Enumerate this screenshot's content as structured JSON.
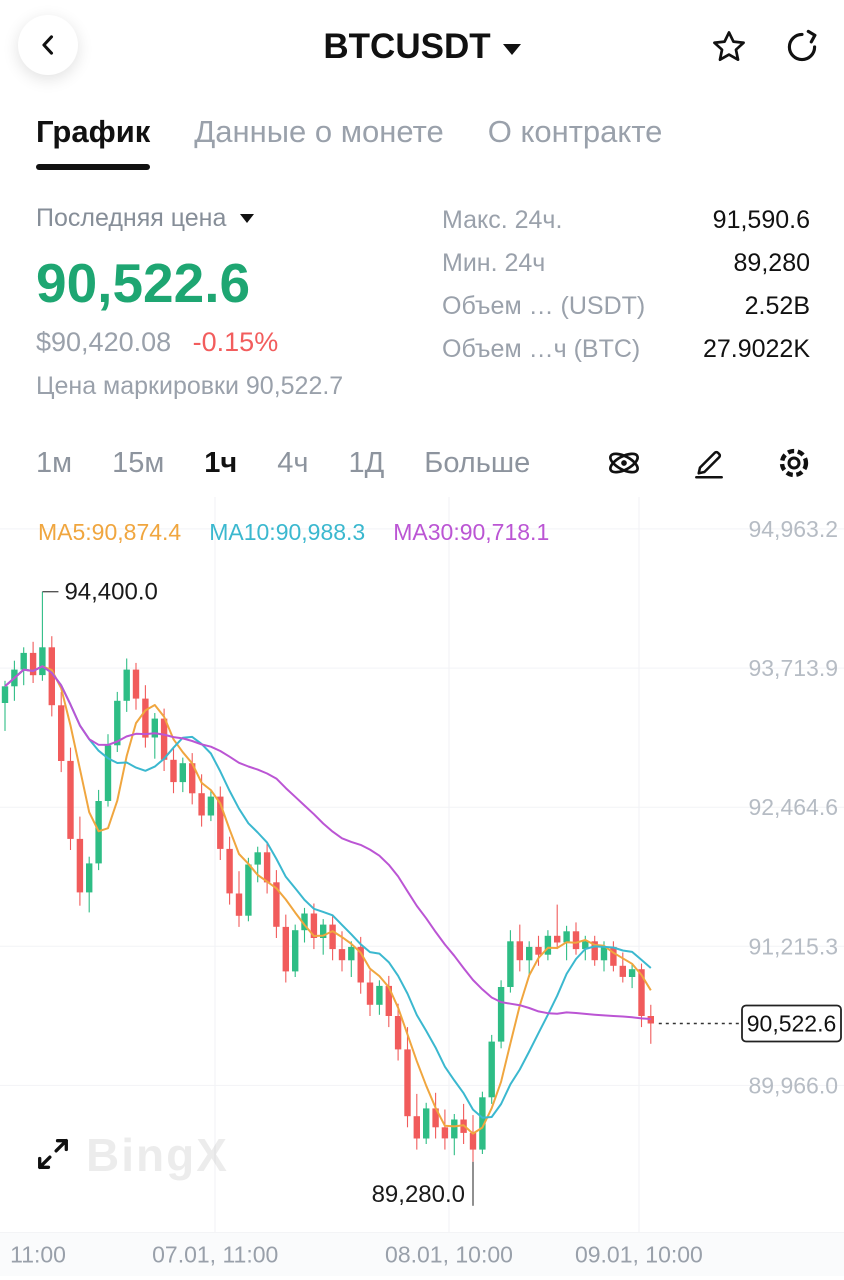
{
  "header": {
    "title": "BTCUSDT"
  },
  "tabs": [
    {
      "label": "График",
      "active": true
    },
    {
      "label": "Данные о монете",
      "active": false
    },
    {
      "label": "О контракте",
      "active": false
    }
  ],
  "price_panel": {
    "label": "Последняя цена",
    "last_price": "90,522.6",
    "fiat_price": "$90,420.08",
    "change_pct": "-0.15%",
    "mark_price": "Цена маркировки 90,522.7",
    "stats": [
      {
        "label": "Макс. 24ч.",
        "value": "91,590.6"
      },
      {
        "label": "Мин. 24ч",
        "value": "89,280"
      },
      {
        "label": "Объем … (USDT)",
        "value": "2.52B"
      },
      {
        "label": "Объем …ч (BTC)",
        "value": "27.9022K"
      }
    ]
  },
  "timeframes": [
    {
      "label": "1м",
      "active": false
    },
    {
      "label": "15м",
      "active": false
    },
    {
      "label": "1ч",
      "active": true
    },
    {
      "label": "4ч",
      "active": false
    },
    {
      "label": "1Д",
      "active": false
    },
    {
      "label": "Больше",
      "active": false
    }
  ],
  "chart": {
    "ma_labels": [
      {
        "text": "MA5:90,874.4"
      },
      {
        "text": "MA10:90,988.3"
      },
      {
        "text": "MA30:90,718.1"
      }
    ],
    "watermark": "BingX"
  },
  "chart_data": {
    "type": "candlestick",
    "symbol": "BTCUSDT",
    "interval": "1h",
    "ylim": [
      88650,
      95250
    ],
    "y_gridlines": [
      {
        "price": 94963.2,
        "label": "94,963.2"
      },
      {
        "price": 93713.9,
        "label": "93,713.9"
      },
      {
        "price": 92464.6,
        "label": "92,464.6"
      },
      {
        "price": 91215.3,
        "label": "91,215.3"
      },
      {
        "price": 89966.0,
        "label": "89,966.0"
      }
    ],
    "x_labels": [
      {
        "label": "11:00",
        "pos": 0.012
      },
      {
        "label": "07.01, 11:00",
        "pos": 0.255
      },
      {
        "label": "08.01, 10:00",
        "pos": 0.532
      },
      {
        "label": "09.01, 10:00",
        "pos": 0.757
      }
    ],
    "annotations": {
      "high": {
        "price": 94400.0,
        "label": "94,400.0",
        "candle_index": 4
      },
      "low": {
        "price": 89280.0,
        "label": "89,280.0",
        "candle_index": 50
      },
      "last": {
        "price": 90522.6,
        "label": "90,522.6"
      }
    },
    "ma": {
      "periods": [
        5,
        10,
        30
      ],
      "colors": [
        "#f0a63f",
        "#3bb8cf",
        "#bb55d4"
      ]
    },
    "colors": {
      "up": "#2ebd85",
      "down": "#f15b5b"
    },
    "candles": [
      [
        93400,
        93600,
        93150,
        93550
      ],
      [
        93550,
        93780,
        93420,
        93700
      ],
      [
        93700,
        93900,
        93560,
        93850
      ],
      [
        93850,
        93950,
        93580,
        93650
      ],
      [
        93650,
        94400,
        93600,
        93900
      ],
      [
        93900,
        94000,
        93280,
        93380
      ],
      [
        93380,
        93500,
        92780,
        92880
      ],
      [
        92880,
        93000,
        92080,
        92180
      ],
      [
        92180,
        92380,
        91580,
        91700
      ],
      [
        91700,
        92020,
        91520,
        91960
      ],
      [
        91960,
        92620,
        91900,
        92520
      ],
      [
        92520,
        93120,
        92470,
        93020
      ],
      [
        93020,
        93500,
        92960,
        93420
      ],
      [
        93420,
        93800,
        93320,
        93700
      ],
      [
        93700,
        93760,
        93340,
        93440
      ],
      [
        93440,
        93560,
        93000,
        93090
      ],
      [
        93090,
        93310,
        92900,
        93260
      ],
      [
        93260,
        93350,
        92790,
        92890
      ],
      [
        92890,
        93010,
        92590,
        92690
      ],
      [
        92690,
        92910,
        92600,
        92860
      ],
      [
        92860,
        92950,
        92490,
        92590
      ],
      [
        92590,
        92760,
        92290,
        92390
      ],
      [
        92390,
        92610,
        92340,
        92560
      ],
      [
        92560,
        92650,
        91990,
        92090
      ],
      [
        92090,
        92200,
        91590,
        91690
      ],
      [
        91690,
        91890,
        91390,
        91490
      ],
      [
        91490,
        92010,
        91440,
        91950
      ],
      [
        91950,
        92110,
        91790,
        92060
      ],
      [
        92060,
        92150,
        91690,
        91790
      ],
      [
        91790,
        91900,
        91290,
        91390
      ],
      [
        91390,
        91500,
        90890,
        90990
      ],
      [
        90990,
        91410,
        90940,
        91360
      ],
      [
        91360,
        91560,
        91250,
        91510
      ],
      [
        91510,
        91600,
        91190,
        91290
      ],
      [
        91290,
        91460,
        91140,
        91410
      ],
      [
        91410,
        91500,
        91090,
        91190
      ],
      [
        91190,
        91350,
        90990,
        91090
      ],
      [
        91090,
        91260,
        90940,
        91210
      ],
      [
        91210,
        91300,
        90790,
        90890
      ],
      [
        90890,
        91000,
        90590,
        90690
      ],
      [
        90690,
        90910,
        90600,
        90860
      ],
      [
        90860,
        90950,
        90490,
        90590
      ],
      [
        90590,
        90700,
        90190,
        90290
      ],
      [
        90290,
        90490,
        89590,
        89690
      ],
      [
        89690,
        89890,
        89390,
        89490
      ],
      [
        89490,
        89810,
        89440,
        89760
      ],
      [
        89760,
        89900,
        89490,
        89590
      ],
      [
        89590,
        89750,
        89390,
        89490
      ],
      [
        89490,
        89710,
        89340,
        89660
      ],
      [
        89660,
        89800,
        89440,
        89540
      ],
      [
        89540,
        89700,
        89280,
        89390
      ],
      [
        89390,
        89910,
        89350,
        89860
      ],
      [
        89860,
        90420,
        89800,
        90360
      ],
      [
        90360,
        90910,
        90300,
        90850
      ],
      [
        90850,
        91360,
        90800,
        91260
      ],
      [
        91260,
        91410,
        90990,
        91090
      ],
      [
        91090,
        91260,
        90940,
        91210
      ],
      [
        91210,
        91310,
        91040,
        91140
      ],
      [
        91140,
        91360,
        91090,
        91310
      ],
      [
        91310,
        91590,
        91190,
        91250
      ],
      [
        91250,
        91400,
        91090,
        91350
      ],
      [
        91350,
        91430,
        91140,
        91190
      ],
      [
        91190,
        91310,
        91090,
        91260
      ],
      [
        91260,
        91310,
        91040,
        91090
      ],
      [
        91090,
        91260,
        90990,
        91210
      ],
      [
        91210,
        91260,
        90990,
        91040
      ],
      [
        91040,
        91160,
        90890,
        90940
      ],
      [
        90940,
        91060,
        90840,
        91010
      ],
      [
        91010,
        91060,
        90490,
        90590
      ],
      [
        90590,
        90690,
        90340,
        90522.6
      ]
    ]
  }
}
